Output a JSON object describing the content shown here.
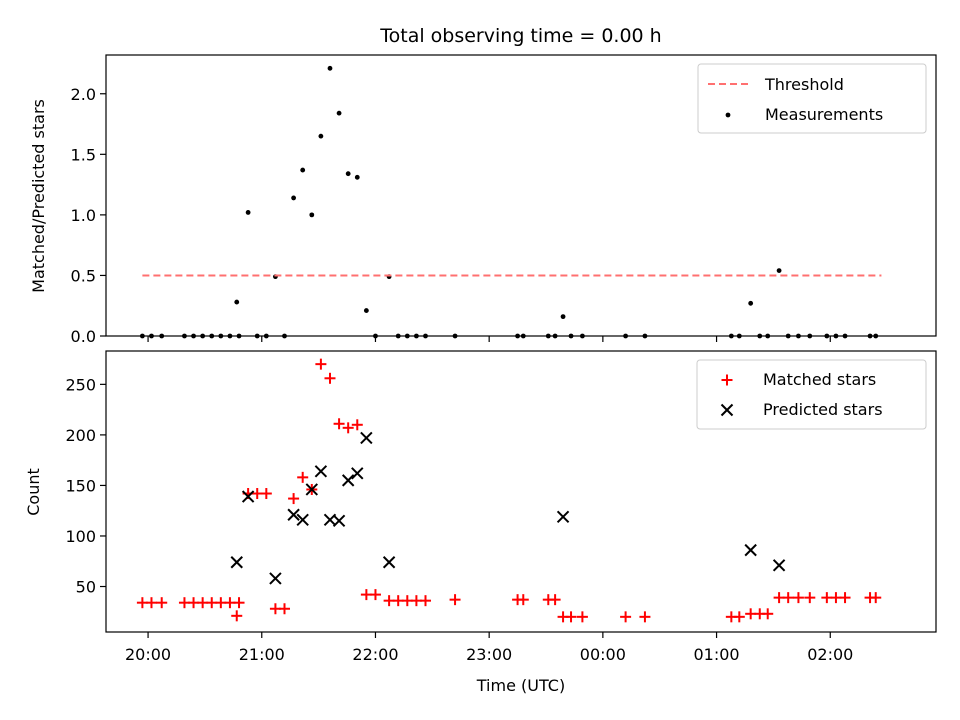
{
  "chart_data": [
    {
      "type": "scatter",
      "title": "Total observing time = 0.00 h",
      "xlabel": "",
      "ylabel": "Matched/Predicted stars",
      "xlim": [
        -0.37,
        6.93
      ],
      "ylim": [
        0,
        2.32
      ],
      "yticks": [
        0.0,
        0.5,
        1.0,
        1.5,
        2.0
      ],
      "ytick_labels": [
        "0.0",
        "0.5",
        "1.0",
        "1.5",
        "2.0"
      ],
      "x_unit": "hours after 20:00 UTC",
      "grid": false,
      "legend_position": "top-right",
      "threshold": {
        "name": "Threshold",
        "y": 0.5,
        "x_range": [
          -0.05,
          6.45
        ],
        "color": "#ff7070"
      },
      "series": [
        {
          "name": "Measurements",
          "marker": "dot",
          "color": "#000000",
          "x": [
            -0.05,
            0.03,
            0.12,
            0.32,
            0.4,
            0.48,
            0.56,
            0.64,
            0.72,
            0.8,
            0.78,
            0.88,
            0.96,
            1.04,
            1.12,
            1.2,
            1.28,
            1.36,
            1.44,
            1.52,
            1.6,
            1.68,
            1.76,
            1.84,
            1.92,
            2.0,
            2.12,
            2.2,
            2.28,
            2.36,
            2.44,
            2.7,
            3.25,
            3.3,
            3.52,
            3.58,
            3.65,
            3.72,
            3.82,
            4.2,
            4.37,
            5.13,
            5.2,
            5.3,
            5.38,
            5.45,
            5.55,
            5.63,
            5.72,
            5.82,
            5.97,
            6.05,
            6.13,
            6.35,
            6.4
          ],
          "y": [
            0,
            0,
            0,
            0,
            0,
            0,
            0,
            0,
            0,
            0,
            0.28,
            1.02,
            0,
            0,
            0.49,
            0,
            1.14,
            1.37,
            1.0,
            1.65,
            2.21,
            1.84,
            1.34,
            1.31,
            0.21,
            0,
            0.49,
            0,
            0,
            0,
            0,
            0,
            0,
            0,
            0,
            0,
            0.16,
            0,
            0,
            0,
            0,
            0,
            0,
            0.27,
            0,
            0,
            0.54,
            0,
            0,
            0,
            0,
            0,
            0,
            0,
            0
          ]
        }
      ]
    },
    {
      "type": "scatter",
      "title": "",
      "xlabel": "Time (UTC)",
      "ylabel": "Count",
      "xlim": [
        -0.37,
        6.93
      ],
      "ylim": [
        5,
        283
      ],
      "yticks": [
        50,
        100,
        150,
        200,
        250
      ],
      "ytick_labels": [
        "50",
        "100",
        "150",
        "200",
        "250"
      ],
      "xticks": [
        0,
        1,
        2,
        3,
        4,
        5,
        6
      ],
      "xtick_labels": [
        "20:00",
        "21:00",
        "22:00",
        "23:00",
        "00:00",
        "01:00",
        "02:00"
      ],
      "x_unit": "hours after 20:00 UTC",
      "grid": false,
      "legend_position": "top-right",
      "series": [
        {
          "name": "Matched stars",
          "marker": "plus",
          "color": "#ff0000",
          "x": [
            -0.05,
            0.03,
            0.12,
            0.32,
            0.4,
            0.48,
            0.56,
            0.64,
            0.72,
            0.8,
            0.78,
            0.88,
            0.96,
            1.04,
            1.12,
            1.2,
            1.28,
            1.36,
            1.44,
            1.52,
            1.6,
            1.68,
            1.76,
            1.84,
            1.92,
            2.0,
            2.12,
            2.2,
            2.28,
            2.36,
            2.44,
            2.7,
            3.25,
            3.3,
            3.52,
            3.58,
            3.65,
            3.72,
            3.82,
            4.2,
            4.37,
            5.13,
            5.2,
            5.3,
            5.38,
            5.45,
            5.55,
            5.63,
            5.72,
            5.82,
            5.97,
            6.05,
            6.13,
            6.35,
            6.4
          ],
          "y": [
            34,
            34,
            34,
            34,
            34,
            34,
            34,
            34,
            34,
            34,
            21,
            142,
            142,
            142,
            28,
            28,
            137,
            158,
            146,
            270,
            256,
            211,
            207,
            210,
            42,
            42,
            36,
            36,
            36,
            36,
            36,
            37,
            37,
            37,
            37,
            37,
            20,
            20,
            20,
            20,
            20,
            20,
            20,
            23,
            23,
            23,
            39,
            39,
            39,
            39,
            39,
            39,
            39,
            39,
            39
          ]
        },
        {
          "name": "Predicted stars",
          "marker": "x",
          "color": "#000000",
          "x": [
            0.78,
            0.88,
            1.12,
            1.28,
            1.36,
            1.44,
            1.52,
            1.6,
            1.68,
            1.76,
            1.84,
            1.92,
            2.12,
            3.65,
            5.3,
            5.55
          ],
          "y": [
            74,
            139,
            58,
            121,
            116,
            146,
            164,
            116,
            115,
            155,
            162,
            197,
            74,
            119,
            86,
            71
          ]
        }
      ]
    }
  ]
}
